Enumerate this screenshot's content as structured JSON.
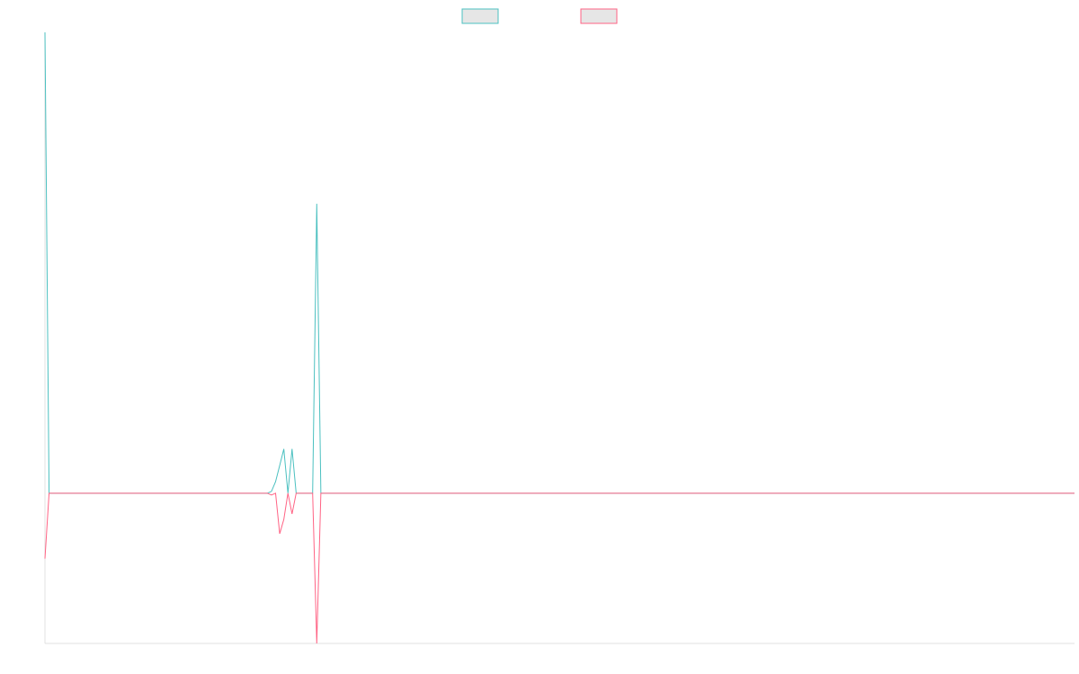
{
  "chart_data": {
    "type": "line",
    "x": [
      0,
      1,
      54,
      55,
      56,
      57,
      58,
      59,
      60,
      61,
      65,
      66,
      67,
      250
    ],
    "xlim": [
      0,
      250
    ],
    "ylim": [
      -32.6,
      100
    ],
    "grid": false,
    "legend": "top",
    "series": [
      {
        "color": "#4bc0c0",
        "values": [
          100,
          0,
          0,
          0.4,
          2.5,
          6,
          9.6,
          0,
          9.6,
          0,
          0,
          62.8,
          0,
          0
        ]
      },
      {
        "color": "#ff6384",
        "values": [
          -14.2,
          0,
          0,
          -0.4,
          0,
          -8.8,
          -5.7,
          0,
          -4.5,
          0,
          0,
          -32.6,
          0,
          0
        ]
      }
    ]
  }
}
